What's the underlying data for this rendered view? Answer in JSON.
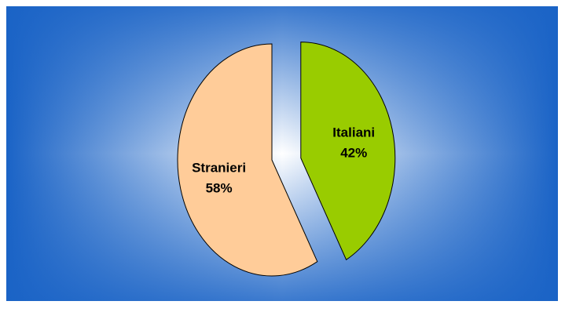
{
  "chart_data": {
    "type": "pie",
    "slices": [
      {
        "label": "Italiani",
        "value": 42,
        "value_label": "42%",
        "color": "#99cc00",
        "exploded": true
      },
      {
        "label": "Stranieri",
        "value": 58,
        "value_label": "58%",
        "color": "#ffcc99",
        "exploded": false
      }
    ],
    "start_angle_deg": 0,
    "direction": "clockwise",
    "background": {
      "edge_color": "#1a63c6",
      "center_color": "#ffffff"
    },
    "legend": "none"
  }
}
